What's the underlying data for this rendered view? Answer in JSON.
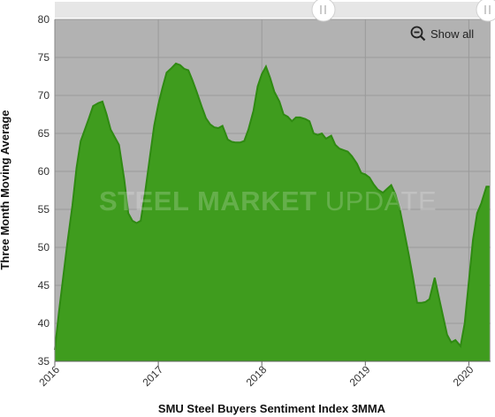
{
  "chart_data": {
    "type": "area",
    "title": "",
    "xlabel": "SMU Steel Buyers Sentiment Index 3MMA",
    "ylabel": "Three Month Moving Average",
    "ylim": [
      35,
      80
    ],
    "y_ticks": [
      35,
      40,
      45,
      50,
      55,
      60,
      65,
      70,
      75,
      80
    ],
    "x_ticks": [
      "2016",
      "2017",
      "2018",
      "2019",
      "2020"
    ],
    "xlim": [
      2016.0,
      2020.21
    ],
    "grid": true,
    "series": [
      {
        "x": [
          2016.0,
          2016.04,
          2016.08,
          2016.12,
          2016.17,
          2016.21,
          2016.25,
          2016.29,
          2016.33,
          2016.37,
          2016.42,
          2016.46,
          2016.5,
          2016.54,
          2016.58,
          2016.62,
          2016.67,
          2016.71,
          2016.75,
          2016.79,
          2016.83,
          2016.87,
          2016.92,
          2016.96,
          2017.0,
          2017.04,
          2017.08,
          2017.12,
          2017.17,
          2017.21,
          2017.25,
          2017.29,
          2017.33,
          2017.37,
          2017.42,
          2017.46,
          2017.5,
          2017.54,
          2017.58,
          2017.62,
          2017.67,
          2017.71,
          2017.75,
          2017.79,
          2017.83,
          2017.87,
          2017.92,
          2017.96,
          2018.0,
          2018.04,
          2018.08,
          2018.12,
          2018.17,
          2018.21,
          2018.25,
          2018.29,
          2018.33,
          2018.37,
          2018.42,
          2018.46,
          2018.5,
          2018.54,
          2018.58,
          2018.62,
          2018.67,
          2018.71,
          2018.75,
          2018.79,
          2018.83,
          2018.87,
          2018.92,
          2018.96,
          2019.0,
          2019.04,
          2019.08,
          2019.12,
          2019.17,
          2019.21,
          2019.25,
          2019.29,
          2019.33,
          2019.37,
          2019.42,
          2019.46,
          2019.5,
          2019.54,
          2019.58,
          2019.62,
          2019.67,
          2019.71,
          2019.75,
          2019.79,
          2019.83,
          2019.87,
          2019.92,
          2019.96,
          2020.0,
          2020.04,
          2020.08,
          2020.12,
          2020.17,
          2020.2
        ],
        "values": [
          36.5,
          41.5,
          46.0,
          50.5,
          55.5,
          60.5,
          64.0,
          65.5,
          67.0,
          68.6,
          69.0,
          69.2,
          67.5,
          65.5,
          64.5,
          63.5,
          59.0,
          54.5,
          53.5,
          53.2,
          53.5,
          57.0,
          62.0,
          66.0,
          68.8,
          71.0,
          73.0,
          73.5,
          74.2,
          74.0,
          73.5,
          73.3,
          72.0,
          70.5,
          68.5,
          67.0,
          66.2,
          65.8,
          65.7,
          66.0,
          64.2,
          63.9,
          63.8,
          63.8,
          64.0,
          65.5,
          68.0,
          71.2,
          72.8,
          73.8,
          72.3,
          70.5,
          69.2,
          67.5,
          67.2,
          66.6,
          67.1,
          67.1,
          66.9,
          66.6,
          65.0,
          64.8,
          65.0,
          64.3,
          64.7,
          63.5,
          63.0,
          62.8,
          62.6,
          62.0,
          61.0,
          59.8,
          59.6,
          59.2,
          58.3,
          57.6,
          57.2,
          57.7,
          58.2,
          57.0,
          55.2,
          52.5,
          49.0,
          46.0,
          42.7,
          42.7,
          42.8,
          43.2,
          46.0,
          43.5,
          41.0,
          38.5,
          37.5,
          37.8,
          37.0,
          40.0,
          45.5,
          51.0,
          54.5,
          55.8,
          58.0,
          58.0
        ]
      }
    ],
    "colors": {
      "area": "#3f9c1e",
      "line": "#2f8a12",
      "plot_bg": "#b2b2b2",
      "grid": "#9a9a9a"
    }
  },
  "zoom": {
    "show_all_label": "Show all",
    "icon": "zoom-out-icon"
  },
  "watermark": {
    "part1": "STEEL",
    "part2": "MARKET",
    "part3": "UPDATE"
  }
}
